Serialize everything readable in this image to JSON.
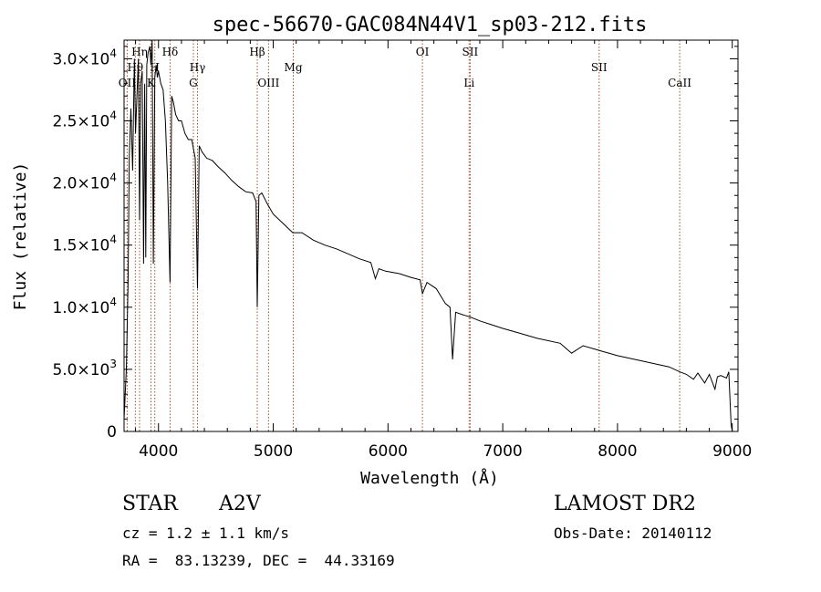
{
  "chart_data": {
    "type": "line",
    "title": "spec-56670-GAC084N44V1_sp03-212.fits",
    "xlabel": "Wavelength (Å)",
    "ylabel": "Flux (relative)",
    "xlim": [
      3700,
      9050
    ],
    "ylim": [
      0,
      31500
    ],
    "x_ticks": [
      {
        "value": 4000,
        "label": "4000"
      },
      {
        "value": 5000,
        "label": "5000"
      },
      {
        "value": 6000,
        "label": "6000"
      },
      {
        "value": 7000,
        "label": "7000"
      },
      {
        "value": 8000,
        "label": "8000"
      },
      {
        "value": 9000,
        "label": "9000"
      }
    ],
    "y_ticks": [
      {
        "value": 0,
        "label": "0",
        "exp": ""
      },
      {
        "value": 5000,
        "label": "5.0×10",
        "exp": "3"
      },
      {
        "value": 10000,
        "label": "1.0×10",
        "exp": "4"
      },
      {
        "value": 15000,
        "label": "1.5×10",
        "exp": "4"
      },
      {
        "value": 20000,
        "label": "2.0×10",
        "exp": "4"
      },
      {
        "value": 25000,
        "label": "2.5×10",
        "exp": "4"
      },
      {
        "value": 30000,
        "label": "3.0×10",
        "exp": "4"
      }
    ],
    "grid": false,
    "line_color": "#000000",
    "marker_color": "#a0522d",
    "series": [
      {
        "x": [
          3700,
          3720,
          3735,
          3745,
          3760,
          3775,
          3790,
          3800,
          3812,
          3825,
          3835,
          3845,
          3858,
          3870,
          3880,
          3889,
          3898,
          3910,
          3925,
          3934,
          3945,
          3955,
          3968,
          3980,
          3990,
          4000,
          4020,
          4040,
          4060,
          4080,
          4101,
          4115,
          4130,
          4150,
          4175,
          4200,
          4230,
          4260,
          4290,
          4320,
          4340,
          4355,
          4380,
          4420,
          4470,
          4520,
          4580,
          4640,
          4700,
          4760,
          4820,
          4850,
          4861,
          4875,
          4900,
          4950,
          5000,
          5080,
          5170,
          5250,
          5350,
          5450,
          5550,
          5650,
          5750,
          5850,
          5890,
          5920,
          5980,
          6100,
          6200,
          6280,
          6300,
          6340,
          6420,
          6500,
          6540,
          6563,
          6590,
          6650,
          6720,
          6800,
          6900,
          7000,
          7150,
          7300,
          7500,
          7600,
          7700,
          7850,
          8000,
          8150,
          8300,
          8450,
          8542,
          8600,
          8662,
          8700,
          8760,
          8800,
          8850,
          8870,
          8900,
          8950,
          8970,
          8990,
          9000
        ],
        "y": [
          1000,
          5000,
          12000,
          22000,
          26000,
          21000,
          30000,
          24000,
          27000,
          30000,
          17000,
          28000,
          29000,
          13500,
          28000,
          14000,
          29500,
          30500,
          31000,
          29500,
          31500,
          13500,
          28500,
          29500,
          28500,
          29000,
          28000,
          27500,
          25000,
          20000,
          12000,
          27000,
          26500,
          25500,
          25000,
          25000,
          24000,
          23500,
          23500,
          22000,
          11500,
          23000,
          22500,
          22000,
          21800,
          21300,
          20800,
          20200,
          19700,
          19300,
          19200,
          18500,
          10000,
          19000,
          19200,
          18300,
          17500,
          16800,
          16000,
          16000,
          15400,
          15000,
          14700,
          14300,
          13900,
          13600,
          12300,
          13100,
          12900,
          12700,
          12400,
          12200,
          11100,
          12000,
          11500,
          10300,
          10000,
          5800,
          9600,
          9400,
          9200,
          8900,
          8600,
          8300,
          7900,
          7500,
          7100,
          6300,
          6900,
          6500,
          6100,
          5800,
          5500,
          5200,
          4800,
          4600,
          4200,
          4700,
          3900,
          4600,
          3400,
          4400,
          4500,
          4300,
          4800,
          500,
          50
        ]
      }
    ],
    "line_markers": [
      {
        "label": "OII",
        "wl": 3727,
        "row": 3
      },
      {
        "label": "Hθ",
        "wl": 3798,
        "row": 2
      },
      {
        "label": "Hη",
        "wl": 3835,
        "row": 1
      },
      {
        "label": "K",
        "wl": 3934,
        "row": 3
      },
      {
        "label": "H",
        "wl": 3968,
        "row": 2
      },
      {
        "label": "Hδ",
        "wl": 4101,
        "row": 1
      },
      {
        "label": "G",
        "wl": 4304,
        "row": 3
      },
      {
        "label": "Hγ",
        "wl": 4340,
        "row": 2
      },
      {
        "label": "Hβ",
        "wl": 4861,
        "row": 1
      },
      {
        "label": "OIII",
        "wl": 4959,
        "row": 3
      },
      {
        "label": "Mg",
        "wl": 5175,
        "row": 2
      },
      {
        "label": "OI",
        "wl": 6300,
        "row": 1
      },
      {
        "label": "SII",
        "wl": 6716,
        "row": 1
      },
      {
        "label": "Li",
        "wl": 6707,
        "row": 3
      },
      {
        "label": "SII",
        "wl": 7840,
        "row": 2
      },
      {
        "label": "CaII",
        "wl": 8542,
        "row": 3
      }
    ]
  },
  "info": {
    "object_class": "STAR",
    "subclass": "A2V",
    "survey": "LAMOST DR2",
    "cz": "cz = 1.2 ± 1.1 km/s",
    "obs_date": "Obs-Date: 20140112",
    "coords": "RA =  83.13239, DEC =  44.33169"
  }
}
